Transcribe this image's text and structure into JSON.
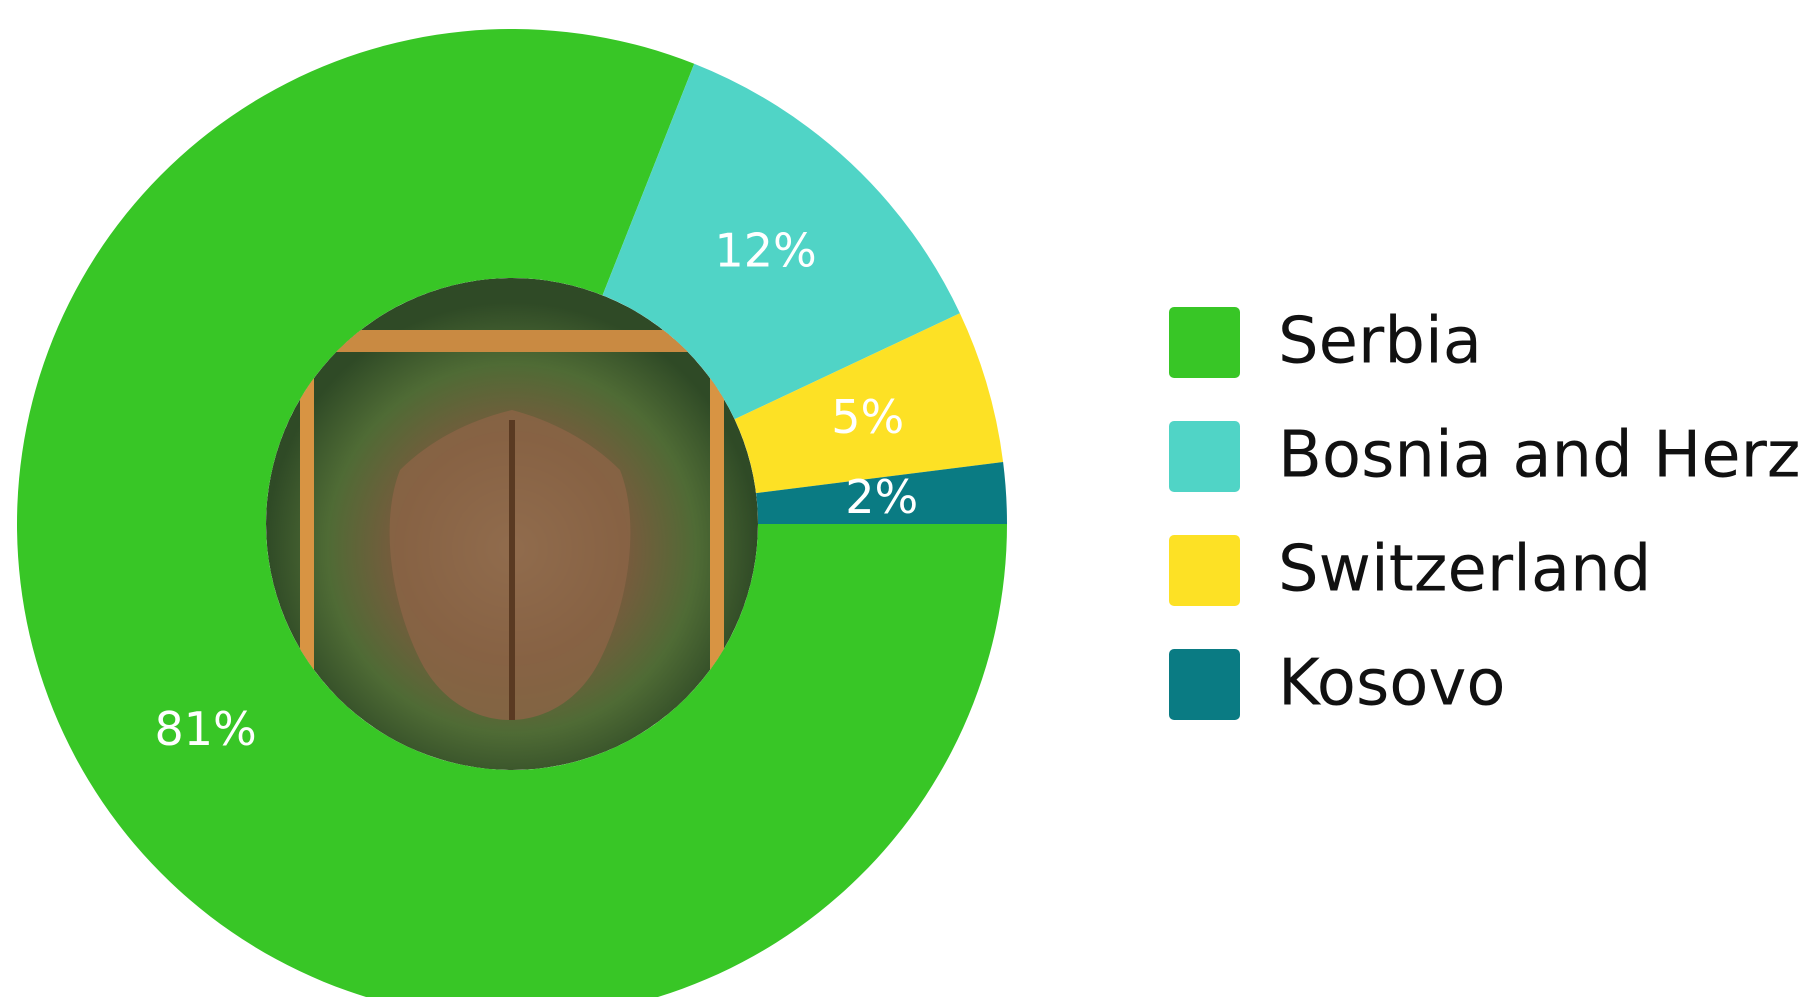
{
  "chart_data": {
    "type": "donut",
    "categories": [
      "Serbia",
      "Bosnia and Herz.",
      "Switzerland",
      "Kosovo"
    ],
    "values": [
      81,
      12,
      5,
      2
    ],
    "value_labels": [
      "81%",
      "12%",
      "5%",
      "2%"
    ],
    "colors": [
      "#38c626",
      "#50d4c6",
      "#fde125",
      "#0a7b83"
    ],
    "legend": "right"
  }
}
